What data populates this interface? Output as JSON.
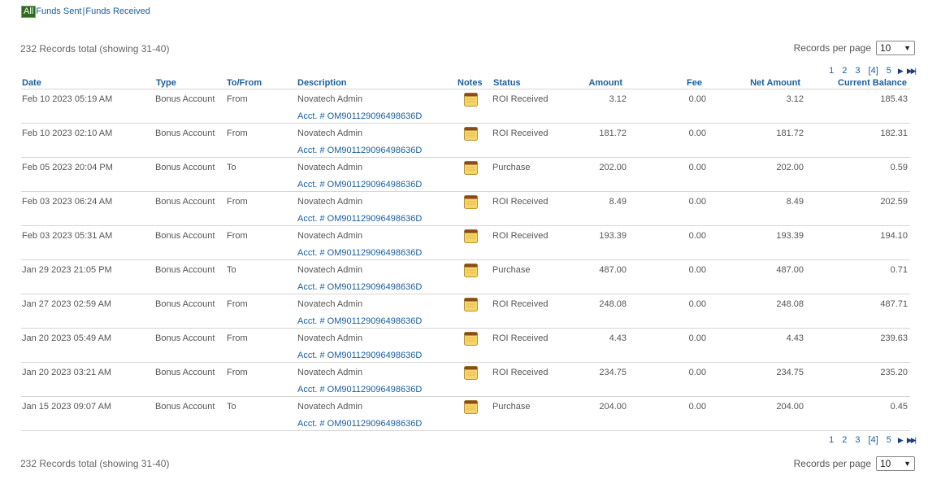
{
  "filters": {
    "all_label": "All",
    "sent_label": "Funds Sent",
    "received_label": "Funds Received",
    "separator": "|"
  },
  "summary": {
    "records_text": "232 Records total (showing 31-40)",
    "records_per_page_label": "Records per page",
    "records_per_page_value": "10"
  },
  "pagination": {
    "pages": [
      "1",
      "2",
      "3",
      "[4]",
      "5"
    ],
    "current": "[4]"
  },
  "table": {
    "headers": {
      "date": "Date",
      "type": "Type",
      "to_from": "To/From",
      "description": "Description",
      "notes": "Notes",
      "status": "Status",
      "amount": "Amount",
      "fee": "Fee",
      "net_amount": "Net Amount",
      "current_balance": "Current Balance"
    },
    "rows": [
      {
        "date": "Feb 10 2023 05:19 AM",
        "type": "Bonus Account",
        "to_from": "From",
        "description": "Novatech Admin",
        "acct": "Acct. # OM901129096498636D",
        "status": "ROI Received",
        "amount": "3.12",
        "fee": "0.00",
        "net": "3.12",
        "balance": "185.43"
      },
      {
        "date": "Feb 10 2023 02:10 AM",
        "type": "Bonus Account",
        "to_from": "From",
        "description": "Novatech Admin",
        "acct": "Acct. # OM901129096498636D",
        "status": "ROI Received",
        "amount": "181.72",
        "fee": "0.00",
        "net": "181.72",
        "balance": "182.31"
      },
      {
        "date": "Feb 05 2023 20:04 PM",
        "type": "Bonus Account",
        "to_from": "To",
        "description": "Novatech Admin",
        "acct": "Acct. # OM901129096498636D",
        "status": "Purchase",
        "amount": "202.00",
        "fee": "0.00",
        "net": "202.00",
        "balance": "0.59"
      },
      {
        "date": "Feb 03 2023 06:24 AM",
        "type": "Bonus Account",
        "to_from": "From",
        "description": "Novatech Admin",
        "acct": "Acct. # OM901129096498636D",
        "status": "ROI Received",
        "amount": "8.49",
        "fee": "0.00",
        "net": "8.49",
        "balance": "202.59"
      },
      {
        "date": "Feb 03 2023 05:31 AM",
        "type": "Bonus Account",
        "to_from": "From",
        "description": "Novatech Admin",
        "acct": "Acct. # OM901129096498636D",
        "status": "ROI Received",
        "amount": "193.39",
        "fee": "0.00",
        "net": "193.39",
        "balance": "194.10"
      },
      {
        "date": "Jan 29 2023 21:05 PM",
        "type": "Bonus Account",
        "to_from": "To",
        "description": "Novatech Admin",
        "acct": "Acct. # OM901129096498636D",
        "status": "Purchase",
        "amount": "487.00",
        "fee": "0.00",
        "net": "487.00",
        "balance": "0.71"
      },
      {
        "date": "Jan 27 2023 02:59 AM",
        "type": "Bonus Account",
        "to_from": "From",
        "description": "Novatech Admin",
        "acct": "Acct. # OM901129096498636D",
        "status": "ROI Received",
        "amount": "248.08",
        "fee": "0.00",
        "net": "248.08",
        "balance": "487.71"
      },
      {
        "date": "Jan 20 2023 05:49 AM",
        "type": "Bonus Account",
        "to_from": "From",
        "description": "Novatech Admin",
        "acct": "Acct. # OM901129096498636D",
        "status": "ROI Received",
        "amount": "4.43",
        "fee": "0.00",
        "net": "4.43",
        "balance": "239.63"
      },
      {
        "date": "Jan 20 2023 03:21 AM",
        "type": "Bonus Account",
        "to_from": "From",
        "description": "Novatech Admin",
        "acct": "Acct. # OM901129096498636D",
        "status": "ROI Received",
        "amount": "234.75",
        "fee": "0.00",
        "net": "234.75",
        "balance": "235.20"
      },
      {
        "date": "Jan 15 2023 09:07 AM",
        "type": "Bonus Account",
        "to_from": "To",
        "description": "Novatech Admin",
        "acct": "Acct. # OM901129096498636D",
        "status": "Purchase",
        "amount": "204.00",
        "fee": "0.00",
        "net": "204.00",
        "balance": "0.45"
      }
    ]
  },
  "icons": {
    "note": "note-icon",
    "next": "next-page-icon",
    "last": "last-page-icon"
  },
  "colors": {
    "link": "#1a5e9a",
    "header_text": "#1a5e9a",
    "active_filter_bg": "#2e6b1f"
  }
}
